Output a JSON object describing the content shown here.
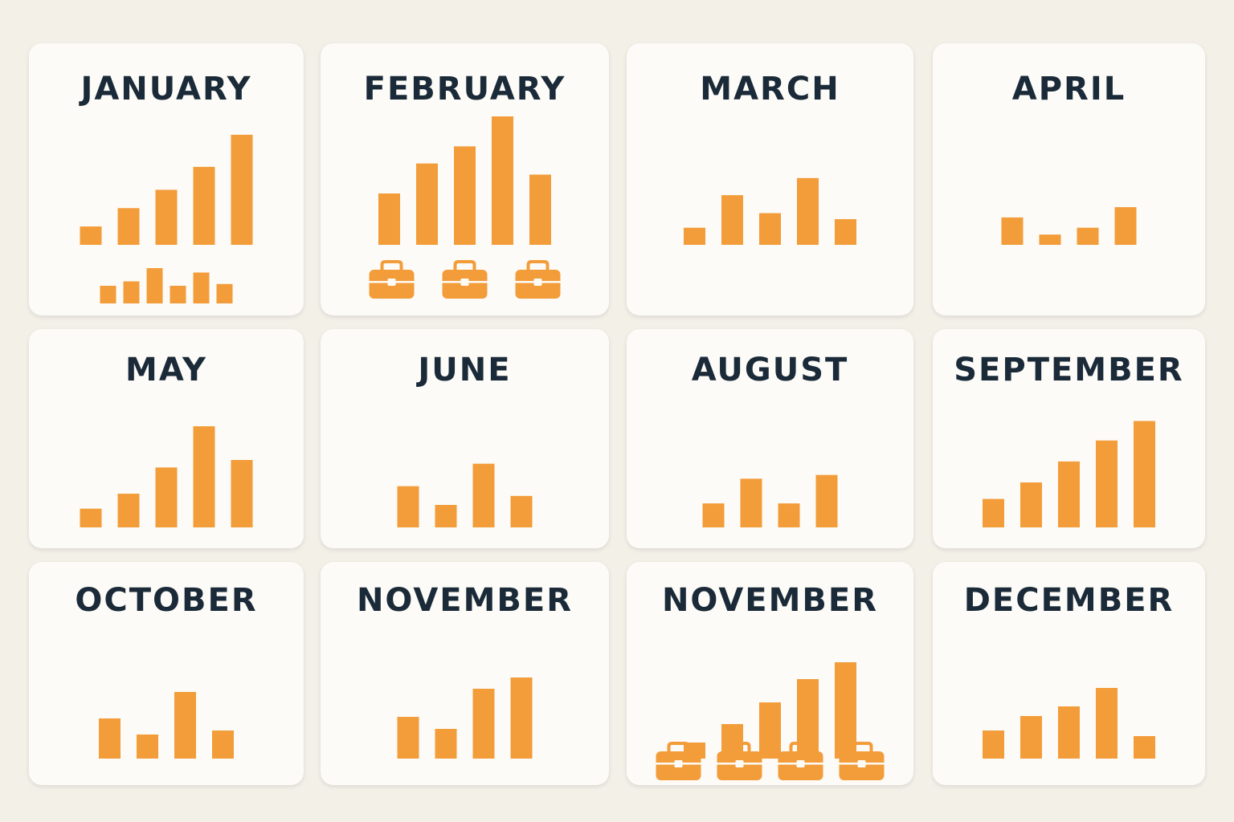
{
  "accent_color": "#f39c3a",
  "title_color": "#1b2a38",
  "cards": [
    {
      "title": "JANUARY",
      "chart_type": "bar",
      "values": [
        2,
        4,
        6,
        8.5,
        12
      ],
      "ylim": [
        0,
        14
      ],
      "mini_bars": [
        2,
        2.5,
        4,
        2,
        3.5,
        2.2
      ]
    },
    {
      "title": "FEBRUARY",
      "chart_type": "bar",
      "values": [
        6,
        9.5,
        11.5,
        15,
        8.2
      ],
      "ylim": [
        0,
        15
      ],
      "briefcases": 3
    },
    {
      "title": "MARCH",
      "chart_type": "bar",
      "values": [
        2,
        5.8,
        3.7,
        7.8,
        3
      ],
      "ylim": [
        0,
        15
      ]
    },
    {
      "title": "APRIL",
      "chart_type": "bar",
      "values": [
        3.2,
        1.2,
        2,
        4.4
      ],
      "ylim": [
        0,
        15
      ]
    },
    {
      "title": "MAY",
      "chart_type": "bar",
      "values": [
        2.5,
        4.5,
        8,
        13.5,
        9
      ],
      "ylim": [
        0,
        15
      ]
    },
    {
      "title": "JUNE",
      "chart_type": "bar",
      "values": [
        5.5,
        3,
        8.5,
        4.2
      ],
      "ylim": [
        0,
        15
      ]
    },
    {
      "title": "AUGUST",
      "chart_type": "bar",
      "values": [
        3.2,
        6.5,
        3.2,
        7
      ],
      "ylim": [
        0,
        15
      ]
    },
    {
      "title": "SEPTEMBER",
      "chart_type": "bar",
      "values": [
        3.8,
        6,
        8.8,
        11.6,
        14.2
      ],
      "ylim": [
        0,
        15
      ]
    },
    {
      "title": "OCTOBER",
      "chart_type": "bar",
      "values": [
        5,
        3,
        8.3,
        3.5
      ],
      "ylim": [
        0,
        15
      ]
    },
    {
      "title": "NOVEMBER",
      "chart_type": "bar",
      "values": [
        5.2,
        3.7,
        8.7,
        10.1
      ],
      "ylim": [
        0,
        15
      ]
    },
    {
      "title": "NOVEMBER",
      "chart_type": "bar",
      "values": [
        2,
        4.3,
        7,
        9.9,
        12
      ],
      "ylim": [
        0,
        15
      ],
      "briefcases": 4
    },
    {
      "title": "DECEMBER",
      "chart_type": "bar",
      "values": [
        3.5,
        5.3,
        6.5,
        8.8,
        2.8
      ],
      "ylim": [
        0,
        15
      ]
    }
  ],
  "chart_data": [
    {
      "type": "bar",
      "title": "JANUARY",
      "values": [
        2,
        4,
        6,
        8.5,
        12
      ],
      "secondary_values": [
        2,
        2.5,
        4,
        2,
        3.5,
        2.2
      ]
    },
    {
      "type": "bar",
      "title": "FEBRUARY",
      "values": [
        6,
        9.5,
        11.5,
        15,
        8.2
      ]
    },
    {
      "type": "bar",
      "title": "MARCH",
      "values": [
        2,
        5.8,
        3.7,
        7.8,
        3
      ]
    },
    {
      "type": "bar",
      "title": "APRIL",
      "values": [
        3.2,
        1.2,
        2,
        4.4
      ]
    },
    {
      "type": "bar",
      "title": "MAY",
      "values": [
        2.5,
        4.5,
        8,
        13.5,
        9
      ]
    },
    {
      "type": "bar",
      "title": "JUNE",
      "values": [
        5.5,
        3,
        8.5,
        4.2
      ]
    },
    {
      "type": "bar",
      "title": "AUGUST",
      "values": [
        3.2,
        6.5,
        3.2,
        7
      ]
    },
    {
      "type": "bar",
      "title": "SEPTEMBER",
      "values": [
        3.8,
        6,
        8.8,
        11.6,
        14.2
      ]
    },
    {
      "type": "bar",
      "title": "OCTOBER",
      "values": [
        5,
        3,
        8.3,
        3.5
      ]
    },
    {
      "type": "bar",
      "title": "NOVEMBER",
      "values": [
        5.2,
        3.7,
        8.7,
        10.1
      ]
    },
    {
      "type": "bar",
      "title": "NOVEMBER",
      "values": [
        2,
        4.3,
        7,
        9.9,
        12
      ]
    },
    {
      "type": "bar",
      "title": "DECEMBER",
      "values": [
        3.5,
        5.3,
        6.5,
        8.8,
        2.8
      ]
    }
  ]
}
